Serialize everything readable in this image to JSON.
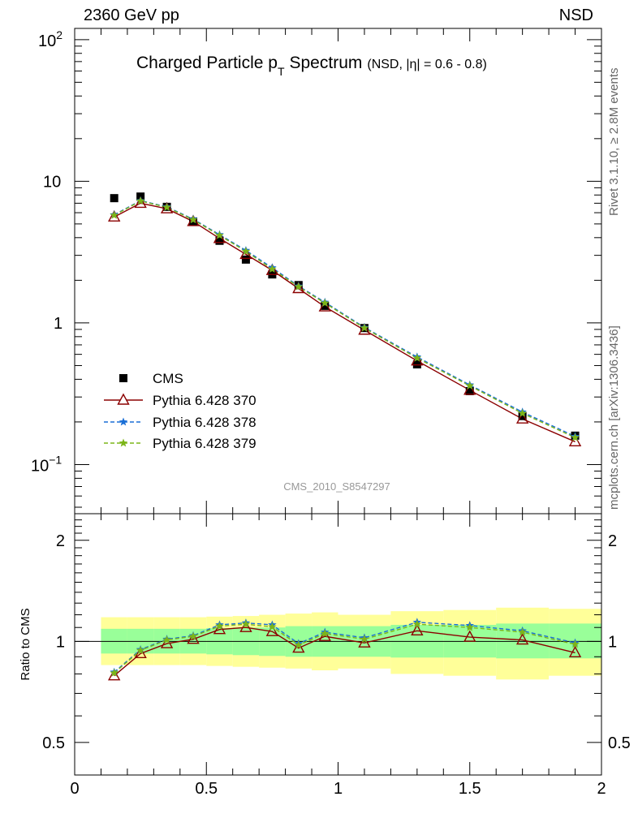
{
  "header": {
    "left": "2360 GeV pp",
    "right": "NSD"
  },
  "side_labels": {
    "rivet": "Rivet 3.1.10, ≥ 2.8M events",
    "mcplots": "mcplots.cern.ch [arXiv:1306.3436]"
  },
  "chart_data": [
    {
      "type": "line",
      "title_main": "Charged Particle p",
      "title_sub": "T",
      "title_rest": "Spectrum",
      "title_note": "(NSD, |η| = 0.6 - 0.8)",
      "watermark": "CMS_2010_S8547297",
      "xlim": [
        0,
        2
      ],
      "ylim": [
        0.045,
        120
      ],
      "yscale": "log",
      "ytick_labels": [
        "10^2",
        "10",
        "1",
        "10^-1"
      ],
      "legend_position": "lower-left",
      "x": [
        0.15,
        0.25,
        0.35,
        0.45,
        0.55,
        0.65,
        0.75,
        0.85,
        0.95,
        1.1,
        1.3,
        1.5,
        1.7,
        1.9
      ],
      "series": [
        {
          "name": "CMS",
          "style": "square",
          "color": "#000000",
          "values": [
            7.6,
            7.8,
            6.6,
            5.2,
            3.8,
            2.8,
            2.2,
            1.85,
            1.32,
            0.92,
            0.51,
            0.33,
            0.22,
            0.16
          ]
        },
        {
          "name": "Pythia 6.428 370",
          "style": "triangle-solid",
          "color": "#8b0000",
          "values": [
            5.6,
            7.0,
            6.4,
            5.2,
            3.95,
            3.05,
            2.35,
            1.75,
            1.3,
            0.89,
            0.54,
            0.335,
            0.21,
            0.145
          ]
        },
        {
          "name": "Pythia 6.428 378",
          "style": "star-dashed",
          "color": "#1a6fd6",
          "values": [
            5.8,
            7.3,
            6.6,
            5.4,
            4.2,
            3.25,
            2.45,
            1.82,
            1.4,
            0.93,
            0.575,
            0.365,
            0.235,
            0.158
          ]
        },
        {
          "name": "Pythia 6.428 379",
          "style": "star-dashed",
          "color": "#7cb518",
          "values": [
            5.75,
            7.25,
            6.55,
            5.35,
            4.15,
            3.2,
            2.4,
            1.8,
            1.38,
            0.92,
            0.565,
            0.36,
            0.23,
            0.155
          ]
        }
      ]
    },
    {
      "type": "line",
      "ylabel": "Ratio to CMS",
      "xlim": [
        0,
        2
      ],
      "ylim": [
        0.4,
        2.4
      ],
      "yscale": "log",
      "yticks": [
        0.5,
        1,
        2
      ],
      "xticks": [
        0,
        0.5,
        1,
        1.5,
        2
      ],
      "reference_line": 1,
      "bands": {
        "edges": [
          0.1,
          0.2,
          0.3,
          0.4,
          0.5,
          0.6,
          0.7,
          0.8,
          0.9,
          1.0,
          1.2,
          1.4,
          1.6,
          1.8,
          2.0
        ],
        "inner_lower": [
          0.92,
          0.92,
          0.92,
          0.92,
          0.915,
          0.91,
          0.905,
          0.9,
          0.9,
          0.9,
          0.895,
          0.895,
          0.89,
          0.89
        ],
        "inner_upper": [
          1.09,
          1.09,
          1.09,
          1.09,
          1.095,
          1.1,
          1.1,
          1.11,
          1.11,
          1.11,
          1.12,
          1.12,
          1.13,
          1.13
        ],
        "outer_lower": [
          0.85,
          0.85,
          0.85,
          0.85,
          0.845,
          0.84,
          0.835,
          0.83,
          0.82,
          0.83,
          0.8,
          0.79,
          0.77,
          0.79
        ],
        "outer_upper": [
          1.18,
          1.18,
          1.18,
          1.18,
          1.185,
          1.19,
          1.2,
          1.21,
          1.22,
          1.2,
          1.23,
          1.24,
          1.26,
          1.25
        ],
        "inner_color": "#99ff99",
        "outer_color": "#ffff99"
      },
      "series": [
        {
          "name": "Pythia 6.428 370",
          "color": "#8b0000",
          "values": [
            0.79,
            0.92,
            0.985,
            1.015,
            1.085,
            1.1,
            1.07,
            0.955,
            1.035,
            0.99,
            1.075,
            1.03,
            1.01,
            0.925
          ]
        },
        {
          "name": "Pythia 6.428 378",
          "color": "#1a6fd6",
          "values": [
            0.81,
            0.945,
            1.015,
            1.04,
            1.12,
            1.135,
            1.12,
            0.985,
            1.065,
            1.025,
            1.14,
            1.115,
            1.075,
            0.99
          ]
        },
        {
          "name": "Pythia 6.428 379",
          "color": "#7cb518",
          "values": [
            0.805,
            0.94,
            1.01,
            1.035,
            1.11,
            1.125,
            1.105,
            0.975,
            1.055,
            1.015,
            1.125,
            1.1,
            1.065,
            0.98
          ]
        }
      ]
    }
  ]
}
